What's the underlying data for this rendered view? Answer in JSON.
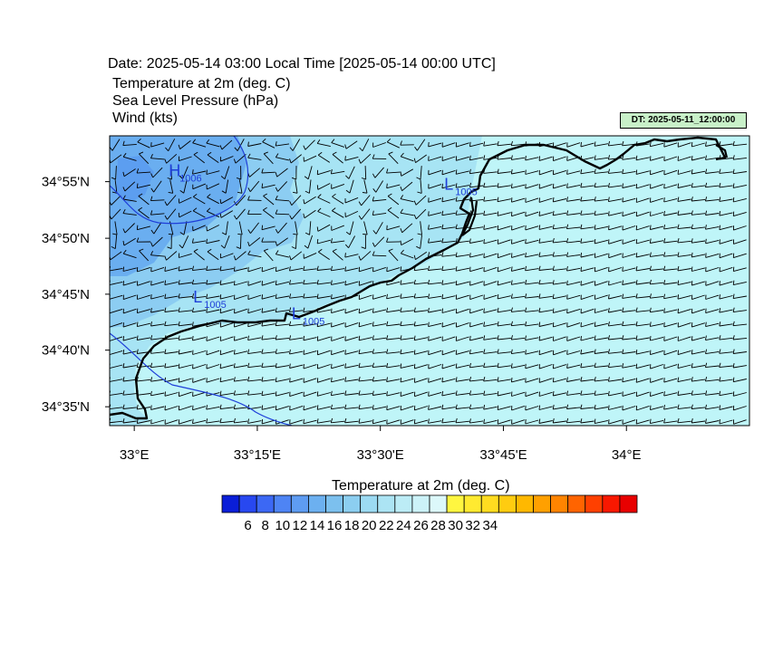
{
  "header": {
    "date_line": "Date: 2025-05-14  03:00 Local Time [2025-05-14  00:00 UTC]",
    "variables": [
      "Temperature at 2m   (deg. C)",
      "Sea Level Pressure   (hPa)",
      "Wind   (kts)"
    ],
    "dt_badge": "DT: 2025-05-11_12:00:00"
  },
  "map": {
    "lon_range": [
      32.95,
      34.25
    ],
    "lat_range": [
      34.555,
      34.985
    ],
    "lat_ticks": [
      {
        "value": 34.917,
        "label": "34°55'N"
      },
      {
        "value": 34.833,
        "label": "34°50'N"
      },
      {
        "value": 34.75,
        "label": "34°45'N"
      },
      {
        "value": 34.667,
        "label": "34°40'N"
      },
      {
        "value": 34.583,
        "label": "34°35'N"
      }
    ],
    "lon_ticks": [
      {
        "value": 33.0,
        "label": "33°E"
      },
      {
        "value": 33.25,
        "label": "33°15'E"
      },
      {
        "value": 33.5,
        "label": "33°30'E"
      },
      {
        "value": 33.75,
        "label": "33°45'E"
      },
      {
        "value": 34.0,
        "label": "34°E"
      }
    ],
    "pressure_centers": [
      {
        "type": "H",
        "value": "1006",
        "lon": 33.07,
        "lat": 34.925
      },
      {
        "type": "L",
        "value": "1005",
        "lon": 33.63,
        "lat": 34.905
      },
      {
        "type": "L",
        "value": "1005",
        "lon": 33.12,
        "lat": 34.738
      },
      {
        "type": "L",
        "value": "1005",
        "lon": 33.32,
        "lat": 34.713
      }
    ],
    "colors": {
      "sea": "#bff5f8",
      "land_warm": "#a7e4f4",
      "land_mid": "#8ccdf2",
      "land_cool": "#6aaef0",
      "land_cold": "#5c9ef0",
      "coastline": "#000000",
      "isobar": "#1e3ed8",
      "wind_barb": "#000000"
    }
  },
  "colorbar": {
    "title": "Temperature at 2m  (deg. C)",
    "colors": [
      "#0a1ed8",
      "#2848f0",
      "#3c68f4",
      "#4e84f4",
      "#5e9cf2",
      "#6cb0f0",
      "#7cc0ee",
      "#8ccef0",
      "#9cdaf2",
      "#acE4f4",
      "#bcecf6",
      "#ccf2f8",
      "#dcf8fa",
      "#fff640",
      "#ffea30",
      "#ffdc20",
      "#ffcc10",
      "#ffb800",
      "#ffa000",
      "#ff8400",
      "#ff6400",
      "#ff4000",
      "#f81800",
      "#e80000"
    ],
    "labels": [
      "6",
      "8",
      "10",
      "12",
      "14",
      "16",
      "18",
      "20",
      "22",
      "24",
      "26",
      "28",
      "30",
      "32",
      "34"
    ]
  }
}
